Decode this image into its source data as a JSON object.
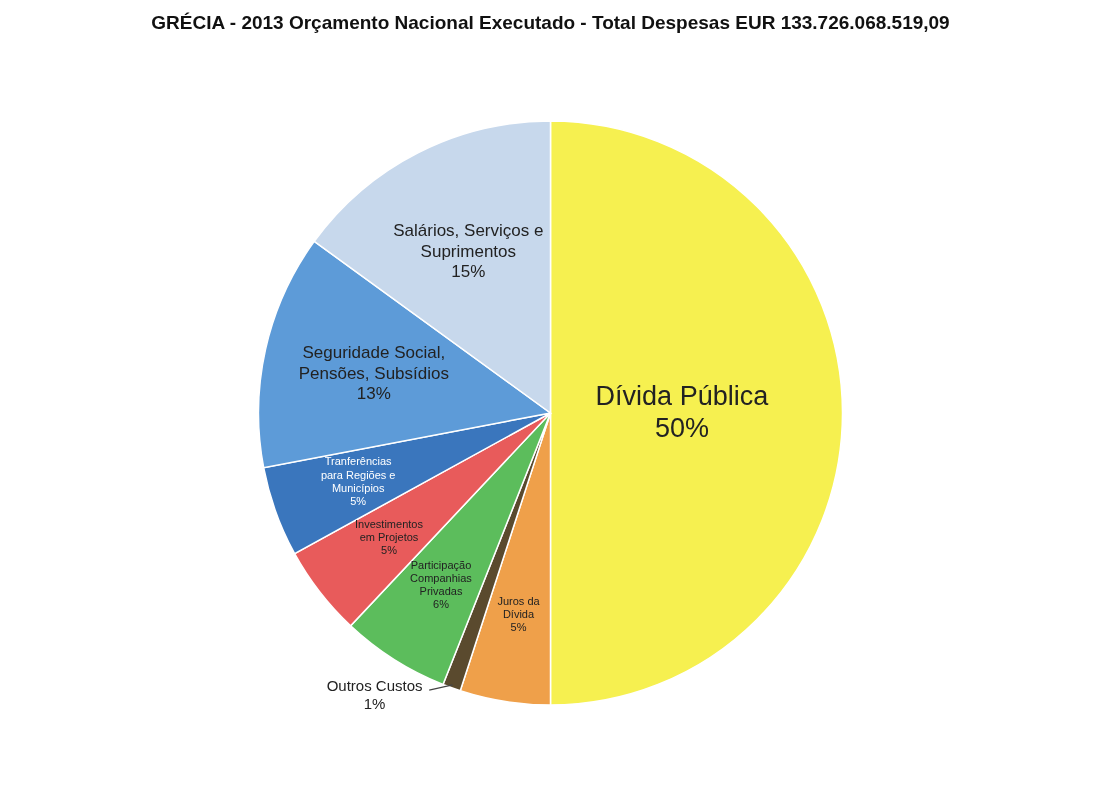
{
  "chart_data": {
    "type": "pie",
    "title": "GRÉCIA - 2013 Orçamento Nacional Executado - Total Despesas EUR 133.726.068.519,09",
    "categories": [
      "Dívida Pública",
      "Juros da Dívida",
      "Outros Custos",
      "Participação Companhias Privadas",
      "Investimentos em Projetos",
      "Tranferências para Regiões e Municípios",
      "Seguridade Social, Pensões, Subsídios",
      "Salários, Serviços e Suprimentos"
    ],
    "values": [
      50,
      5,
      1,
      6,
      5,
      5,
      13,
      15
    ],
    "value_labels": [
      "50%",
      "5%",
      "1%",
      "6%",
      "5%",
      "5%",
      "13%",
      "15%"
    ],
    "colors": [
      "#f6f050",
      "#efa04a",
      "#5a4a2e",
      "#5cbd5c",
      "#e85b5b",
      "#3a76bd",
      "#5d9bd8",
      "#c7d8ec"
    ]
  }
}
